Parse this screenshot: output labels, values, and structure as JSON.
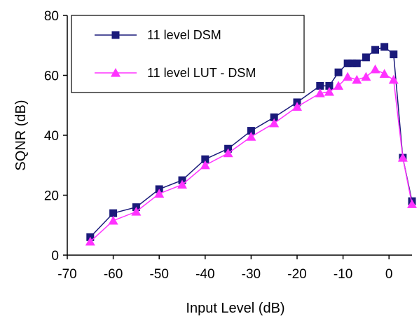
{
  "chart_data": {
    "type": "line",
    "title": "",
    "xlabel": "Input Level (dB)",
    "ylabel": "SQNR (dB)",
    "xlim": [
      -70,
      5
    ],
    "ylim": [
      0,
      80
    ],
    "xticks": [
      -70,
      -60,
      -50,
      -40,
      -30,
      -20,
      -10,
      0
    ],
    "yticks": [
      0,
      20,
      40,
      60,
      80
    ],
    "xtick_labels": [
      "-70",
      "-60",
      "-50",
      "-40",
      "-30",
      "-20",
      "-10",
      "0"
    ],
    "ytick_labels": [
      "0",
      "20",
      "40",
      "60",
      "80"
    ],
    "grid": false,
    "legend_position": "top-left",
    "series": [
      {
        "name": "11 level DSM",
        "color": "#1a1a7a",
        "marker": "square",
        "x": [
          -65,
          -60,
          -55,
          -50,
          -45,
          -40,
          -35,
          -30,
          -25,
          -20,
          -15,
          -13,
          -11,
          -9,
          -8,
          -7,
          -5,
          -3,
          -1,
          1,
          3,
          5
        ],
        "y": [
          6,
          14,
          16,
          22,
          25,
          32,
          35.5,
          41.5,
          46,
          51,
          56.5,
          56.5,
          61,
          64,
          64,
          64,
          66,
          68.5,
          69.5,
          67,
          32.5,
          18
        ]
      },
      {
        "name": "11 level LUT - DSM",
        "color": "#ff33ff",
        "marker": "triangle",
        "x": [
          -65,
          -60,
          -55,
          -50,
          -45,
          -40,
          -35,
          -30,
          -25,
          -20,
          -15,
          -13,
          -11,
          -9,
          -7,
          -5,
          -3,
          -1,
          1,
          3,
          5
        ],
        "y": [
          4.5,
          11.5,
          14.5,
          20.5,
          23.5,
          30,
          34,
          39.5,
          44,
          49.5,
          54,
          54.5,
          56.5,
          59.5,
          58.5,
          59.5,
          62,
          60.5,
          58.5,
          32.5,
          17
        ]
      }
    ]
  }
}
